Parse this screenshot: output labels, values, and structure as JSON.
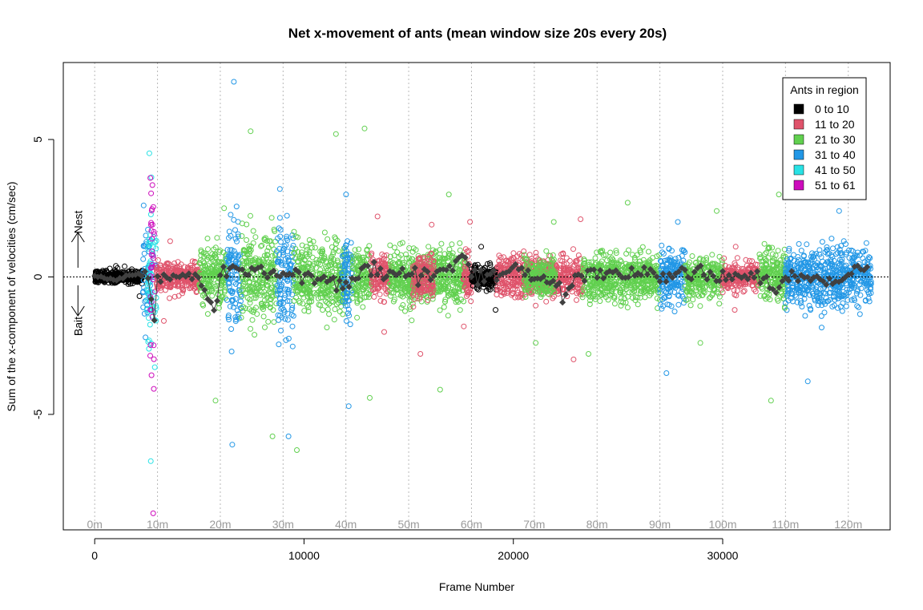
{
  "chart_data": {
    "type": "scatter",
    "title": "Net x-movement of ants (mean window size 20s every 20s)",
    "xlabel": "Frame Number",
    "ylabel": "Sum of the x-component of velocities (cm/sec)",
    "xlim": [
      -1500,
      38000
    ],
    "ylim": [
      -9.2,
      7.8
    ],
    "x_ticks": [
      0,
      10000,
      20000,
      30000
    ],
    "x_tick_labels": [
      "0",
      "10000",
      "20000",
      "30000"
    ],
    "y_ticks": [
      -5,
      0,
      5
    ],
    "y_tick_labels": [
      "-5",
      "0",
      "5"
    ],
    "minute_markers": {
      "frames": [
        0,
        3000,
        6000,
        9000,
        12000,
        15000,
        18000,
        21000,
        24000,
        27000,
        30000,
        33000,
        36000
      ],
      "labels": [
        "0m",
        "10m",
        "20m",
        "30m",
        "40m",
        "50m",
        "60m",
        "70m",
        "80m",
        "90m",
        "100m",
        "110m",
        "120m"
      ],
      "color": "#9a9a9a"
    },
    "direction_annotations": {
      "up": "Nest",
      "down": "Bait"
    },
    "legend": {
      "title": "Ants in region",
      "position": "top-right",
      "entries": [
        {
          "label": "0 to 10",
          "color": "#000000"
        },
        {
          "label": "11 to 20",
          "color": "#DF536B"
        },
        {
          "label": "21 to 30",
          "color": "#61D04F"
        },
        {
          "label": "31 to 40",
          "color": "#2297E6"
        },
        {
          "label": "41 to 50",
          "color": "#28E2E5"
        },
        {
          "label": "51 to 61",
          "color": "#CD0BBC"
        }
      ]
    },
    "segments": [
      {
        "x": [
          0,
          2300
        ],
        "group": 0,
        "spread": 0.18,
        "ymin": -0.7,
        "ymax": 0.4
      },
      {
        "x": [
          2300,
          2650
        ],
        "group": 3,
        "spread": 1.4,
        "ymin": -2.2,
        "ymax": 2.6
      },
      {
        "x": [
          2500,
          2950
        ],
        "group": 4,
        "spread": 2.0,
        "ymin": -6.7,
        "ymax": 4.5
      },
      {
        "x": [
          2650,
          2900
        ],
        "group": 5,
        "spread": 3.4,
        "ymin": -8.6,
        "ymax": 3.6
      },
      {
        "x": [
          2950,
          5000
        ],
        "group": 1,
        "spread": 0.45,
        "ymin": -1.6,
        "ymax": 1.3
      },
      {
        "x": [
          5000,
          6300
        ],
        "group": 2,
        "spread": 0.9,
        "ymin": -4.5,
        "ymax": 2.5
      },
      {
        "x": [
          6300,
          7000
        ],
        "group": 3,
        "spread": 1.5,
        "ymin": -6.1,
        "ymax": 7.1
      },
      {
        "x": [
          7000,
          8700
        ],
        "group": 2,
        "spread": 1.2,
        "ymin": -5.8,
        "ymax": 5.3
      },
      {
        "x": [
          8700,
          9500
        ],
        "group": 3,
        "spread": 1.6,
        "ymin": -5.8,
        "ymax": 3.2
      },
      {
        "x": [
          9500,
          12000
        ],
        "group": 2,
        "spread": 1.1,
        "ymin": -6.3,
        "ymax": 5.2
      },
      {
        "x": [
          11800,
          12300
        ],
        "group": 3,
        "spread": 1.2,
        "ymin": -4.7,
        "ymax": 3.0
      },
      {
        "x": [
          12300,
          13200
        ],
        "group": 2,
        "spread": 0.9,
        "ymin": -4.4,
        "ymax": 5.4
      },
      {
        "x": [
          13200,
          14100
        ],
        "group": 1,
        "spread": 0.6,
        "ymin": -2.0,
        "ymax": 2.2
      },
      {
        "x": [
          14100,
          17700
        ],
        "group": 2,
        "spread": 0.8,
        "ymin": -4.1,
        "ymax": 3.0
      },
      {
        "x": [
          15200,
          16200
        ],
        "group": 1,
        "spread": 0.7,
        "ymin": -2.8,
        "ymax": 1.9
      },
      {
        "x": [
          17600,
          18000
        ],
        "group": 1,
        "spread": 0.7,
        "ymin": -1.8,
        "ymax": 2.0
      },
      {
        "x": [
          18000,
          19200
        ],
        "group": 0,
        "spread": 0.35,
        "ymin": -1.2,
        "ymax": 1.1
      },
      {
        "x": [
          19200,
          23300
        ],
        "group": 1,
        "spread": 0.6,
        "ymin": -3.0,
        "ymax": 2.1
      },
      {
        "x": [
          20500,
          22000
        ],
        "group": 2,
        "spread": 0.6,
        "ymin": -2.4,
        "ymax": 2.0
      },
      {
        "x": [
          23300,
          27000
        ],
        "group": 2,
        "spread": 0.7,
        "ymin": -2.8,
        "ymax": 2.7
      },
      {
        "x": [
          27000,
          28200
        ],
        "group": 3,
        "spread": 0.8,
        "ymin": -3.5,
        "ymax": 2.0
      },
      {
        "x": [
          28200,
          30000
        ],
        "group": 2,
        "spread": 0.6,
        "ymin": -2.4,
        "ymax": 2.4
      },
      {
        "x": [
          30000,
          31700
        ],
        "group": 1,
        "spread": 0.4,
        "ymin": -1.2,
        "ymax": 1.1
      },
      {
        "x": [
          31700,
          33000
        ],
        "group": 2,
        "spread": 0.8,
        "ymin": -4.5,
        "ymax": 3.0
      },
      {
        "x": [
          33000,
          37100
        ],
        "group": 3,
        "spread": 0.9,
        "ymin": -3.8,
        "ymax": 2.4
      }
    ],
    "mean_series": {
      "color": "#404040",
      "step": 150,
      "x": [
        0,
        1000,
        2000,
        2600,
        2800,
        3000,
        4000,
        5000,
        5800,
        6000,
        6600,
        7000,
        8000,
        9000,
        10000,
        11000,
        12000,
        13000,
        14000,
        15000,
        16000,
        17000,
        17500,
        18000,
        19000,
        20000,
        21000,
        22000,
        22400,
        23000,
        24000,
        25000,
        26000,
        27000,
        28000,
        29000,
        30000,
        31000,
        32000,
        32600,
        33000,
        34000,
        35000,
        36000,
        37000
      ],
      "y": [
        0,
        -0.1,
        0.1,
        0.0,
        -2.1,
        -0.2,
        0.0,
        0.0,
        -1.6,
        0.0,
        0.5,
        0.1,
        0.3,
        0.0,
        0.2,
        -0.1,
        -0.3,
        0.4,
        0.1,
        0.2,
        0.0,
        0.3,
        0.7,
        0.1,
        0.0,
        0.4,
        0.0,
        -0.2,
        -1.0,
        0.1,
        0.1,
        0.0,
        0.2,
        0.0,
        0.1,
        0.2,
        0.0,
        0.1,
        -0.1,
        -0.6,
        0.1,
        0.0,
        -0.2,
        0.0,
        0.4
      ]
    }
  }
}
